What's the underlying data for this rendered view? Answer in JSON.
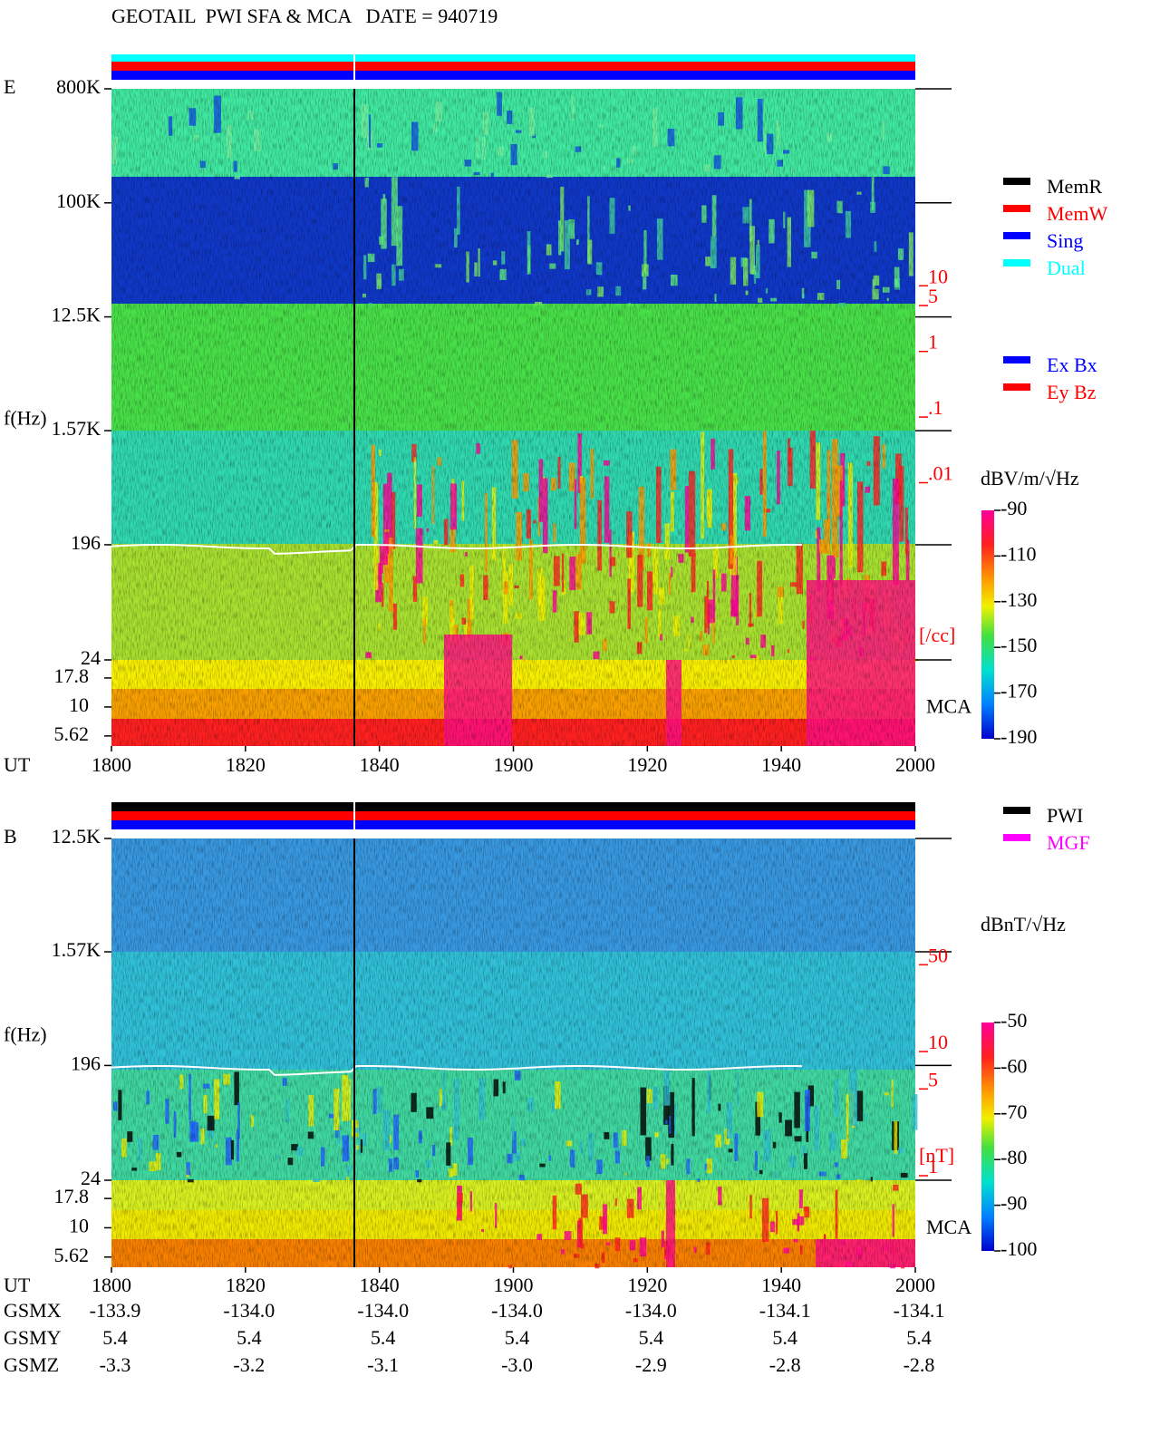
{
  "header": {
    "title": "GEOTAIL  PWI SFA & MCA   DATE = 940719"
  },
  "chart_data": [
    {
      "type": "spectrogram",
      "panel_label": "E",
      "y_label": "f(Hz)",
      "x_label": "UT",
      "log_y": true,
      "ylim": [
        24,
        800000
      ],
      "yticks": [
        {
          "value": 800000,
          "label": "800K"
        },
        {
          "value": 100000,
          "label": "100K"
        },
        {
          "value": 12500,
          "label": "12.5K"
        },
        {
          "value": 1570,
          "label": "1.57K"
        },
        196,
        24
      ],
      "mca_label": "MCA",
      "mca_ylim": [
        4.6,
        25.5
      ],
      "mca_yticks": [
        17.8,
        10,
        5.62
      ],
      "xticks": [
        "1800",
        "1820",
        "1840",
        "1900",
        "1920",
        "1940",
        "2000"
      ],
      "density_ylim": [
        2e-05,
        10000
      ],
      "density_ticks": [
        10,
        5,
        1,
        {
          "value": 0.1,
          "label": ".1"
        },
        {
          "value": 0.01,
          "label": ".01"
        }
      ],
      "density_unit": "[/cc]",
      "colorbar": {
        "label": "dBV/m/√Hz",
        "zlim": [
          -190,
          -90
        ],
        "ticks": [
          -90,
          -110,
          -130,
          -150,
          -170,
          -190
        ]
      },
      "legend": [
        {
          "name": "MemR",
          "color": "#000000"
        },
        {
          "name": "MemW",
          "color": "#ff0000"
        },
        {
          "name": "Sing",
          "color": "#0000ff"
        },
        {
          "name": "Dual",
          "color": "#00ffff"
        }
      ],
      "legend2": [
        {
          "name": "Ex Bx",
          "color": "#0000ff"
        },
        {
          "name": "Ey Bz",
          "color": "#ff0000"
        }
      ]
    },
    {
      "type": "spectrogram",
      "panel_label": "B",
      "y_label": "f(Hz)",
      "x_label": "UT",
      "log_y": true,
      "ylim": [
        24,
        12500
      ],
      "yticks": [
        {
          "value": 12500,
          "label": "12.5K"
        },
        {
          "value": 1570,
          "label": "1.57K"
        },
        196,
        24
      ],
      "mca_label": "MCA",
      "mca_ylim": [
        4.6,
        25.5
      ],
      "mca_yticks": [
        17.8,
        10,
        5.62
      ],
      "xticks": [
        "1800",
        "1820",
        "1840",
        "1900",
        "1920",
        "1940",
        "2000"
      ],
      "density_ylim": [
        0.92,
        520
      ],
      "density_ticks": [
        50,
        10,
        5,
        1
      ],
      "density_unit": "[nT]",
      "colorbar": {
        "label": "dBnT/√Hz",
        "zlim": [
          -100,
          -50
        ],
        "ticks": [
          -50,
          -60,
          -70,
          -80,
          -90,
          -100
        ]
      },
      "legend": [
        {
          "name": "PWI",
          "color": "#000000"
        },
        {
          "name": "MGF",
          "color": "#ff00ff"
        }
      ],
      "legend2": []
    }
  ],
  "orbit": {
    "rows": [
      {
        "label": "GSMX",
        "values": [
          "-133.9",
          "-134.0",
          "-134.0",
          "-134.0",
          "-134.0",
          "-134.1",
          "-134.1"
        ]
      },
      {
        "label": "GSMY",
        "values": [
          "5.4",
          "5.4",
          "5.4",
          "5.4",
          "5.4",
          "5.4",
          "5.4"
        ]
      },
      {
        "label": "GSMZ",
        "values": [
          "-3.3",
          "-3.2",
          "-3.1",
          "-3.0",
          "-2.9",
          "-2.8",
          "-2.8"
        ]
      }
    ]
  }
}
